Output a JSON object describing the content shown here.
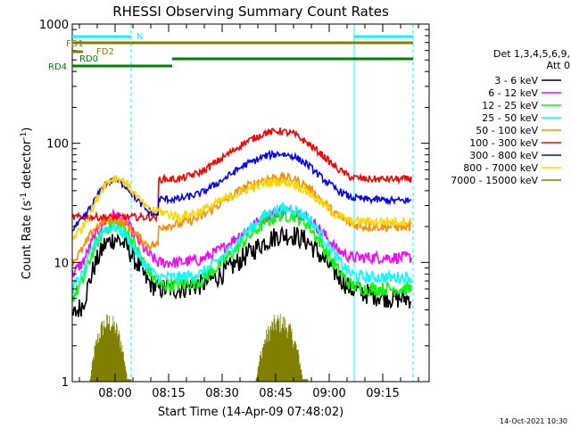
{
  "chart_data": {
    "type": "line",
    "title": "RHESSI Observing Summary Count Rates",
    "xlabel": "Start Time (14-Apr-09 07:48:02)",
    "ylabel_main": "Count Rate (s",
    "ylabel_sup1": "-1",
    "ylabel_mid": " detector",
    "ylabel_sup2": "-1",
    "ylabel_end": ")",
    "y_scale": "log",
    "ylim": [
      1,
      1000
    ],
    "xlim_minutes": [
      0,
      100
    ],
    "x_ticks": [
      {
        "t": 12,
        "label": "08:00"
      },
      {
        "t": 27,
        "label": "08:15"
      },
      {
        "t": 42,
        "label": "08:30"
      },
      {
        "t": 57,
        "label": "08:45"
      },
      {
        "t": 72,
        "label": "09:00"
      },
      {
        "t": 87,
        "label": "09:15"
      }
    ],
    "y_ticks": [
      {
        "v": 1,
        "label": "1"
      },
      {
        "v": 10,
        "label": "10"
      },
      {
        "v": 100,
        "label": "100"
      },
      {
        "v": 1000,
        "label": "1000"
      }
    ],
    "legend_header": [
      "Det 1,3,4,5,6,9,",
      "Att 0"
    ],
    "legend_position": "right",
    "time_markers": {
      "solid": [
        0,
        79
      ],
      "dashed": [
        16.5,
        95.5
      ]
    },
    "series": [
      {
        "name": "3 - 6 keV",
        "color": "#000000",
        "noise": 0.09,
        "points": [
          [
            0,
            3.5
          ],
          [
            3,
            4.5
          ],
          [
            6,
            9
          ],
          [
            9,
            14
          ],
          [
            12,
            16
          ],
          [
            15,
            14
          ],
          [
            18,
            10
          ],
          [
            21,
            7
          ],
          [
            24,
            6
          ],
          [
            30,
            6
          ],
          [
            36,
            6.5
          ],
          [
            42,
            8
          ],
          [
            48,
            11
          ],
          [
            54,
            15
          ],
          [
            58,
            17
          ],
          [
            62,
            17
          ],
          [
            66,
            15
          ],
          [
            70,
            11
          ],
          [
            74,
            8
          ],
          [
            78,
            6
          ],
          [
            82,
            5.5
          ],
          [
            90,
            5
          ],
          [
            95,
            5
          ]
        ]
      },
      {
        "name": "6 - 12 keV",
        "color": "#ff00ff",
        "noise": 0.05,
        "points": [
          [
            0,
            8
          ],
          [
            3,
            10
          ],
          [
            6,
            16
          ],
          [
            9,
            22
          ],
          [
            12,
            25
          ],
          [
            15,
            22
          ],
          [
            18,
            16
          ],
          [
            21,
            12
          ],
          [
            24,
            10
          ],
          [
            30,
            10
          ],
          [
            36,
            10.5
          ],
          [
            42,
            13
          ],
          [
            48,
            18
          ],
          [
            54,
            24
          ],
          [
            58,
            27
          ],
          [
            62,
            27
          ],
          [
            66,
            24
          ],
          [
            70,
            18
          ],
          [
            74,
            13
          ],
          [
            78,
            11
          ],
          [
            82,
            11
          ],
          [
            90,
            11
          ],
          [
            95,
            11
          ]
        ]
      },
      {
        "name": "12 - 25 keV",
        "color": "#00ff00",
        "noise": 0.06,
        "points": [
          [
            0,
            5
          ],
          [
            3,
            7
          ],
          [
            6,
            13
          ],
          [
            9,
            19
          ],
          [
            12,
            22
          ],
          [
            15,
            19
          ],
          [
            18,
            13
          ],
          [
            21,
            9
          ],
          [
            24,
            6.5
          ],
          [
            30,
            6.5
          ],
          [
            36,
            7
          ],
          [
            42,
            10
          ],
          [
            48,
            15
          ],
          [
            54,
            22
          ],
          [
            58,
            25
          ],
          [
            62,
            25
          ],
          [
            66,
            21
          ],
          [
            70,
            14
          ],
          [
            74,
            9
          ],
          [
            78,
            6.5
          ],
          [
            82,
            6
          ],
          [
            90,
            6
          ],
          [
            95,
            6
          ]
        ]
      },
      {
        "name": "25 - 50 keV",
        "color": "#00ffff",
        "noise": 0.05,
        "points": [
          [
            0,
            6
          ],
          [
            3,
            8
          ],
          [
            6,
            14
          ],
          [
            9,
            19
          ],
          [
            12,
            20
          ],
          [
            15,
            17
          ],
          [
            18,
            12
          ],
          [
            21,
            9
          ],
          [
            24,
            7.5
          ],
          [
            30,
            7.5
          ],
          [
            36,
            8
          ],
          [
            42,
            11
          ],
          [
            48,
            17
          ],
          [
            54,
            25
          ],
          [
            58,
            28
          ],
          [
            62,
            28
          ],
          [
            66,
            24
          ],
          [
            70,
            17
          ],
          [
            74,
            11
          ],
          [
            78,
            8
          ],
          [
            82,
            7.5
          ],
          [
            90,
            7.5
          ],
          [
            95,
            7.5
          ]
        ]
      },
      {
        "name": "50 - 100 keV",
        "color": "#ff8c00",
        "noise": 0.04,
        "points": [
          [
            0,
            10
          ],
          [
            3,
            13
          ],
          [
            6,
            19
          ],
          [
            9,
            22
          ],
          [
            12,
            23
          ],
          [
            15,
            21
          ],
          [
            18,
            17
          ],
          [
            21,
            14
          ],
          [
            24,
            14
          ],
          [
            24.2,
            20
          ],
          [
            30,
            21
          ],
          [
            36,
            24
          ],
          [
            42,
            32
          ],
          [
            48,
            42
          ],
          [
            54,
            50
          ],
          [
            58,
            52
          ],
          [
            62,
            50
          ],
          [
            66,
            43
          ],
          [
            70,
            33
          ],
          [
            74,
            25
          ],
          [
            78,
            21
          ],
          [
            82,
            20
          ],
          [
            90,
            20
          ],
          [
            95,
            20
          ]
        ]
      },
      {
        "name": "100 - 300 keV",
        "color": "#ff0000",
        "noise": 0.03,
        "points": [
          [
            0,
            24
          ],
          [
            24,
            24
          ],
          [
            24.2,
            50
          ],
          [
            30,
            50
          ],
          [
            36,
            57
          ],
          [
            42,
            75
          ],
          [
            48,
            100
          ],
          [
            54,
            122
          ],
          [
            58,
            127
          ],
          [
            62,
            120
          ],
          [
            66,
            100
          ],
          [
            70,
            80
          ],
          [
            74,
            62
          ],
          [
            78,
            52
          ],
          [
            82,
            50
          ],
          [
            90,
            50
          ],
          [
            95,
            50
          ]
        ]
      },
      {
        "name": "300 - 800 keV",
        "color": "#0000ff",
        "noise": 0.03,
        "points": [
          [
            0,
            19
          ],
          [
            3,
            23
          ],
          [
            6,
            32
          ],
          [
            9,
            45
          ],
          [
            12,
            50
          ],
          [
            15,
            44
          ],
          [
            18,
            34
          ],
          [
            21,
            27
          ],
          [
            24,
            25
          ],
          [
            24.2,
            34
          ],
          [
            30,
            34
          ],
          [
            36,
            38
          ],
          [
            42,
            49
          ],
          [
            48,
            65
          ],
          [
            54,
            78
          ],
          [
            58,
            82
          ],
          [
            62,
            78
          ],
          [
            66,
            66
          ],
          [
            70,
            51
          ],
          [
            74,
            41
          ],
          [
            78,
            35
          ],
          [
            82,
            34
          ],
          [
            90,
            33
          ],
          [
            95,
            33
          ]
        ]
      },
      {
        "name": "800 - 7000 keV",
        "color": "#ffd700",
        "noise": 0.04,
        "points": [
          [
            0,
            16
          ],
          [
            3,
            20
          ],
          [
            6,
            30
          ],
          [
            9,
            45
          ],
          [
            12,
            52
          ],
          [
            15,
            47
          ],
          [
            18,
            36
          ],
          [
            21,
            28
          ],
          [
            24,
            27
          ],
          [
            30,
            24
          ],
          [
            36,
            27
          ],
          [
            42,
            33
          ],
          [
            48,
            40
          ],
          [
            54,
            46
          ],
          [
            58,
            48
          ],
          [
            62,
            46
          ],
          [
            66,
            39
          ],
          [
            70,
            31
          ],
          [
            74,
            25
          ],
          [
            78,
            22
          ],
          [
            82,
            22
          ],
          [
            90,
            22
          ],
          [
            95,
            22
          ]
        ]
      },
      {
        "name": "7000 - 15000 keV",
        "color": "#808000",
        "noise": 0,
        "points": []
      }
    ],
    "olive_bursts": [
      {
        "from": 5,
        "to": 16.5
      },
      {
        "from": 51.5,
        "to": 66
      }
    ],
    "flag_bars": [
      {
        "label": "N",
        "color": "#00ffff",
        "segments": [
          [
            0,
            16.5
          ],
          [
            79,
            95.5
          ]
        ],
        "level": 0
      },
      {
        "label": "FD1",
        "color": "#808000",
        "segments": [
          [
            0,
            95.5
          ]
        ],
        "level": 1
      },
      {
        "label": "FD2",
        "color": "#808000",
        "segments": [
          [
            0,
            3
          ]
        ],
        "level": 2
      },
      {
        "label": "RD0",
        "color": "#008000",
        "segments": [
          [
            28,
            95.5
          ]
        ],
        "level": 3
      },
      {
        "label": "RD4",
        "color": "#008000",
        "segments": [
          [
            0,
            28
          ]
        ],
        "level": 4
      }
    ],
    "footer_stamp": "14-Oct-2021 10:30"
  }
}
